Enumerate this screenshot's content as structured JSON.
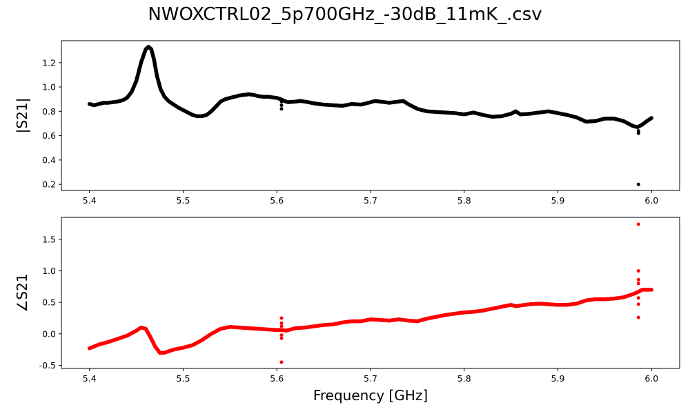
{
  "figure": {
    "title": "NWOXCTRL02_5p700GHz_-30dB_11mK_.csv"
  },
  "chart_data": [
    {
      "type": "scatter",
      "ylabel": "|S21|",
      "xlabel": "",
      "xlim": [
        5.37,
        6.03
      ],
      "ylim": [
        0.15,
        1.38
      ],
      "xticks": [
        "5.4",
        "5.5",
        "5.6",
        "5.7",
        "5.8",
        "5.9",
        "6.0"
      ],
      "yticks": [
        "0.2",
        "0.4",
        "0.6",
        "0.8",
        "1.0",
        "1.2"
      ],
      "color": "#000000",
      "grid": false,
      "series": [
        {
          "x": [
            5.4,
            5.405,
            5.41,
            5.415,
            5.42,
            5.425,
            5.43,
            5.435,
            5.44,
            5.445,
            5.45,
            5.455,
            5.46,
            5.463,
            5.466,
            5.469,
            5.472,
            5.476,
            5.48,
            5.485,
            5.49,
            5.495,
            5.5,
            5.505,
            5.51,
            5.515,
            5.52,
            5.525,
            5.53,
            5.535,
            5.54,
            5.545,
            5.55,
            5.555,
            5.56,
            5.565,
            5.57,
            5.575,
            5.58,
            5.585,
            5.59,
            5.595,
            5.6,
            5.604,
            5.608,
            5.612,
            5.62,
            5.625,
            5.63,
            5.64,
            5.65,
            5.66,
            5.67,
            5.68,
            5.69,
            5.7,
            5.705,
            5.71,
            5.72,
            5.73,
            5.735,
            5.74,
            5.75,
            5.76,
            5.77,
            5.78,
            5.79,
            5.8,
            5.81,
            5.82,
            5.83,
            5.84,
            5.85,
            5.855,
            5.86,
            5.87,
            5.88,
            5.89,
            5.9,
            5.91,
            5.92,
            5.93,
            5.94,
            5.95,
            5.96,
            5.97,
            5.975,
            5.98,
            5.985,
            5.99,
            5.995,
            6.0
          ],
          "y": [
            0.86,
            0.85,
            0.86,
            0.87,
            0.87,
            0.875,
            0.88,
            0.89,
            0.91,
            0.96,
            1.05,
            1.2,
            1.31,
            1.33,
            1.31,
            1.22,
            1.09,
            0.98,
            0.92,
            0.88,
            0.855,
            0.83,
            0.81,
            0.79,
            0.77,
            0.76,
            0.76,
            0.77,
            0.8,
            0.84,
            0.88,
            0.9,
            0.91,
            0.92,
            0.93,
            0.935,
            0.94,
            0.935,
            0.925,
            0.92,
            0.92,
            0.915,
            0.91,
            0.9,
            0.885,
            0.875,
            0.88,
            0.885,
            0.88,
            0.865,
            0.855,
            0.85,
            0.845,
            0.86,
            0.855,
            0.875,
            0.885,
            0.88,
            0.87,
            0.88,
            0.885,
            0.86,
            0.82,
            0.8,
            0.795,
            0.79,
            0.785,
            0.775,
            0.79,
            0.77,
            0.755,
            0.76,
            0.78,
            0.8,
            0.775,
            0.78,
            0.79,
            0.8,
            0.785,
            0.77,
            0.75,
            0.715,
            0.72,
            0.74,
            0.74,
            0.72,
            0.7,
            0.68,
            0.67,
            0.69,
            0.72,
            0.745
          ]
        },
        {
          "x": [
            5.605,
            5.605,
            5.605,
            5.986,
            5.986,
            5.986
          ],
          "y": [
            0.88,
            0.85,
            0.82,
            0.64,
            0.62,
            0.2
          ]
        }
      ]
    },
    {
      "type": "scatter",
      "ylabel": "∠S21",
      "xlabel": "Frequency [GHz]",
      "xlim": [
        5.37,
        6.03
      ],
      "ylim": [
        -0.55,
        1.85
      ],
      "xticks": [
        "5.4",
        "5.5",
        "5.6",
        "5.7",
        "5.8",
        "5.9",
        "6.0"
      ],
      "yticks": [
        "-0.5",
        "0.0",
        "0.5",
        "1.0",
        "1.5"
      ],
      "color": "#ff0000",
      "grid": false,
      "series": [
        {
          "x": [
            5.4,
            5.41,
            5.42,
            5.43,
            5.44,
            5.45,
            5.455,
            5.46,
            5.465,
            5.47,
            5.475,
            5.48,
            5.49,
            5.5,
            5.51,
            5.52,
            5.53,
            5.54,
            5.55,
            5.56,
            5.57,
            5.58,
            5.59,
            5.6,
            5.605,
            5.61,
            5.62,
            5.63,
            5.64,
            5.65,
            5.66,
            5.67,
            5.68,
            5.69,
            5.7,
            5.71,
            5.72,
            5.73,
            5.74,
            5.75,
            5.76,
            5.77,
            5.78,
            5.79,
            5.8,
            5.81,
            5.82,
            5.83,
            5.84,
            5.85,
            5.855,
            5.86,
            5.87,
            5.88,
            5.89,
            5.9,
            5.91,
            5.92,
            5.93,
            5.94,
            5.95,
            5.96,
            5.97,
            5.98,
            5.985,
            5.99,
            6.0
          ],
          "y": [
            -0.23,
            -0.17,
            -0.13,
            -0.08,
            -0.03,
            0.05,
            0.1,
            0.08,
            -0.05,
            -0.2,
            -0.3,
            -0.3,
            -0.25,
            -0.22,
            -0.18,
            -0.1,
            0.0,
            0.08,
            0.11,
            0.1,
            0.09,
            0.08,
            0.07,
            0.06,
            0.06,
            0.05,
            0.09,
            0.1,
            0.12,
            0.14,
            0.15,
            0.18,
            0.2,
            0.2,
            0.23,
            0.22,
            0.21,
            0.23,
            0.21,
            0.2,
            0.24,
            0.27,
            0.3,
            0.32,
            0.34,
            0.35,
            0.37,
            0.4,
            0.43,
            0.46,
            0.44,
            0.45,
            0.47,
            0.48,
            0.47,
            0.46,
            0.46,
            0.48,
            0.53,
            0.55,
            0.55,
            0.56,
            0.58,
            0.63,
            0.66,
            0.7,
            0.7
          ]
        },
        {
          "x": [
            5.605,
            5.605,
            5.605,
            5.605,
            5.605,
            5.605,
            5.986,
            5.986,
            5.986,
            5.986,
            5.986,
            5.986,
            5.986
          ],
          "y": [
            0.25,
            0.17,
            0.12,
            -0.02,
            -0.07,
            -0.45,
            1.74,
            1.0,
            0.86,
            0.8,
            0.57,
            0.47,
            0.26
          ]
        }
      ]
    }
  ]
}
